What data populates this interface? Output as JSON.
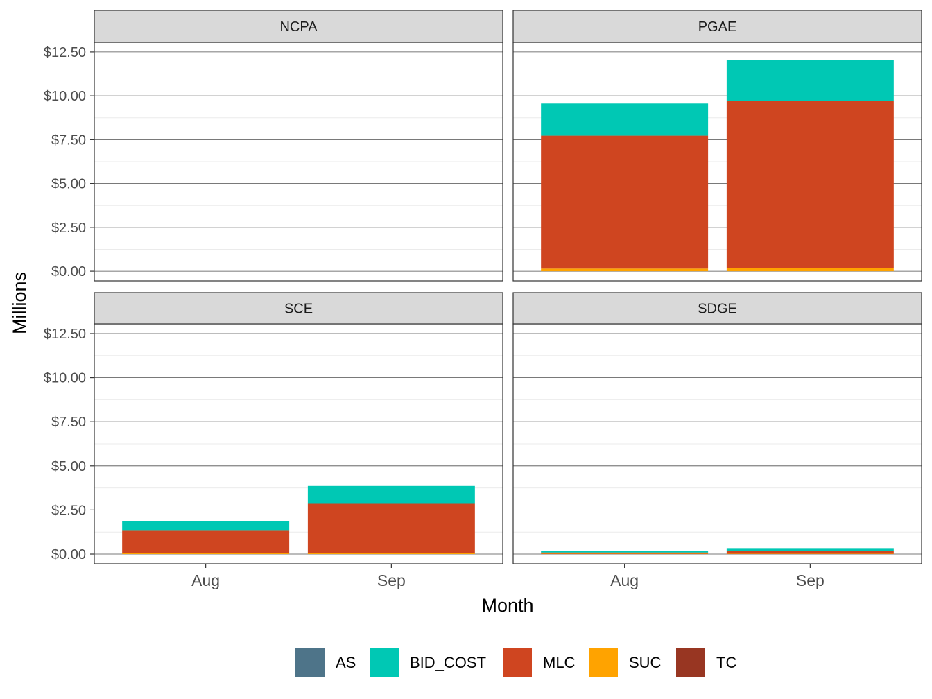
{
  "chart_data": {
    "type": "bar",
    "stacked": true,
    "facet": "2x2",
    "xlabel": "Month",
    "ylabel": "Millions",
    "ylim": [
      0,
      12.5
    ],
    "y_ticks": [
      "$0.00",
      "$2.50",
      "$5.00",
      "$7.50",
      "$10.00",
      "$12.50"
    ],
    "y_tick_values": [
      0,
      2.5,
      5,
      7.5,
      10,
      12.5
    ],
    "categories": [
      "Aug",
      "Sep"
    ],
    "grid": true,
    "legend_position": "bottom",
    "legend": [
      {
        "name": "AS",
        "color": "#4e7489"
      },
      {
        "name": "BID_COST",
        "color": "#00c8b4"
      },
      {
        "name": "MLC",
        "color": "#cf4520"
      },
      {
        "name": "SUC",
        "color": "#ffa300"
      },
      {
        "name": "TC",
        "color": "#983622"
      }
    ],
    "panels": [
      {
        "title": "NCPA",
        "series": [
          {
            "name": "AS",
            "values": [
              0,
              0
            ]
          },
          {
            "name": "BID_COST",
            "values": [
              0,
              0
            ]
          },
          {
            "name": "MLC",
            "values": [
              0,
              0
            ]
          },
          {
            "name": "SUC",
            "values": [
              0,
              0
            ]
          },
          {
            "name": "TC",
            "values": [
              0,
              0
            ]
          }
        ]
      },
      {
        "title": "PGAE",
        "series": [
          {
            "name": "AS",
            "values": [
              0,
              0
            ]
          },
          {
            "name": "BID_COST",
            "values": [
              1.83,
              2.32
            ]
          },
          {
            "name": "MLC",
            "values": [
              7.58,
              9.54
            ]
          },
          {
            "name": "SUC",
            "values": [
              0.15,
              0.18
            ]
          },
          {
            "name": "TC",
            "values": [
              0,
              0
            ]
          }
        ]
      },
      {
        "title": "SCE",
        "series": [
          {
            "name": "AS",
            "values": [
              0,
              0
            ]
          },
          {
            "name": "BID_COST",
            "values": [
              0.55,
              1.01
            ]
          },
          {
            "name": "MLC",
            "values": [
              1.26,
              2.8
            ]
          },
          {
            "name": "SUC",
            "values": [
              0.06,
              0.05
            ]
          },
          {
            "name": "TC",
            "values": [
              0,
              0
            ]
          }
        ]
      },
      {
        "title": "SDGE",
        "series": [
          {
            "name": "AS",
            "values": [
              0,
              0
            ]
          },
          {
            "name": "BID_COST",
            "values": [
              0.08,
              0.15
            ]
          },
          {
            "name": "MLC",
            "values": [
              0.07,
              0.17
            ]
          },
          {
            "name": "SUC",
            "values": [
              0.02,
              0.02
            ]
          },
          {
            "name": "TC",
            "values": [
              0,
              0
            ]
          }
        ]
      }
    ]
  }
}
